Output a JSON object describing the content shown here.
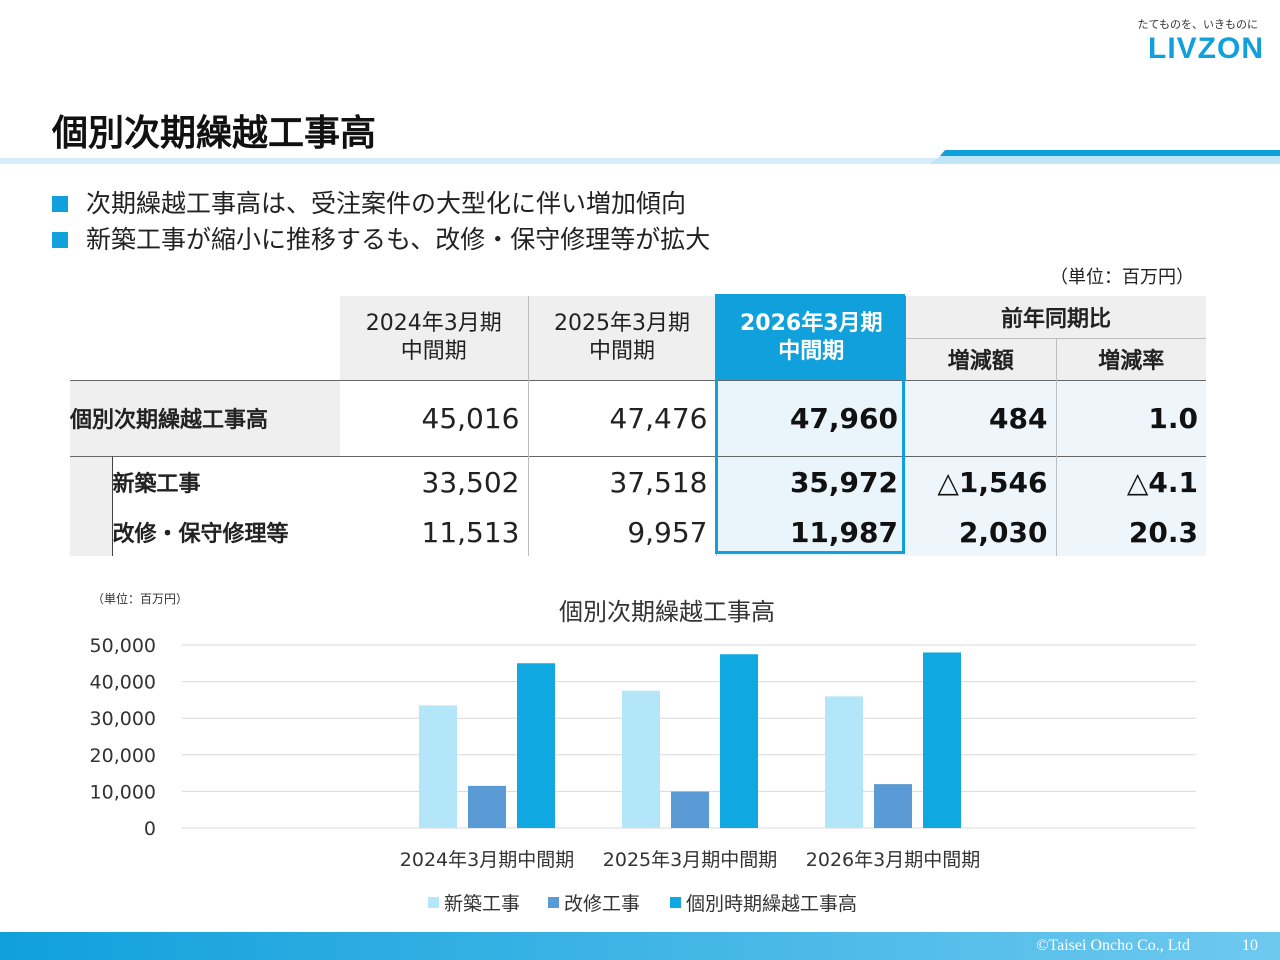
{
  "brand": {
    "tagline": "たてものを、いきものに",
    "logo": "LIVZON",
    "accent": "#10a0dc"
  },
  "page": {
    "title": "個別次期繰越工事高",
    "number": "10",
    "copyright": "©Taisei Oncho Co., Ltd"
  },
  "bullets": [
    "次期繰越工事高は、受注案件の大型化に伴い増加傾向",
    "新築工事が縮小に推移するも、改修・保守修理等が拡大"
  ],
  "table": {
    "unit": "（単位：百万円）",
    "headers": {
      "col1_line1": "2024年3月期",
      "col1_line2": "中間期",
      "col2_line1": "2025年3月期",
      "col2_line2": "中間期",
      "col3_line1": "2026年3月期",
      "col3_line2": "中間期",
      "compare": "前年同期比",
      "diff": "増減額",
      "rate": "増減率"
    },
    "rows": [
      {
        "label": "個別次期繰越工事高",
        "v1": "45,016",
        "v2": "47,476",
        "v3": "47,960",
        "diff": "484",
        "rate": "1.0"
      },
      {
        "label": "新築工事",
        "v1": "33,502",
        "v2": "37,518",
        "v3": "35,972",
        "diff": "△1,546",
        "rate": "△4.1"
      },
      {
        "label": "改修・保守修理等",
        "v1": "11,513",
        "v2": "9,957",
        "v3": "11,987",
        "diff": "2,030",
        "rate": "20.3"
      }
    ]
  },
  "chart_unit": "（単位：百万円）",
  "chart_data": {
    "type": "bar",
    "title": "個別次期繰越工事高",
    "categories": [
      "2024年3月期中間期",
      "2025年3月期中間期",
      "2026年3月期中間期"
    ],
    "series": [
      {
        "name": "新築工事",
        "values": [
          33502,
          37518,
          35972
        ],
        "color": "#b3e6f8"
      },
      {
        "name": "改修工事",
        "values": [
          11513,
          9957,
          11987
        ],
        "color": "#5b9bd5"
      },
      {
        "name": "個別時期繰越工事高",
        "values": [
          45016,
          47476,
          47960
        ],
        "color": "#10a8e0"
      }
    ],
    "yticks": [
      "0",
      "10,000",
      "20,000",
      "30,000",
      "40,000",
      "50,000"
    ],
    "ylim": [
      0,
      50000
    ],
    "grid": true,
    "legend": "bottom"
  }
}
